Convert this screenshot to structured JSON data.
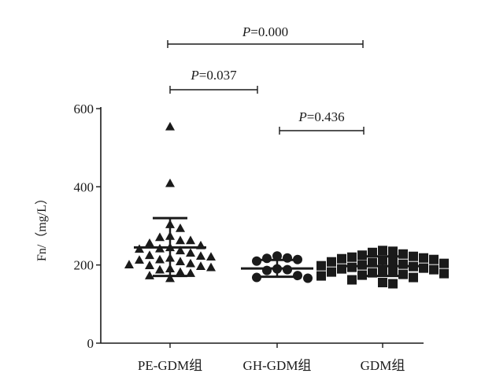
{
  "chart_data": {
    "type": "scatter",
    "ylabel": "Fn/（mg/L）",
    "ylim": [
      0,
      600
    ],
    "yticks": [
      0,
      200,
      400,
      600
    ],
    "categories": [
      "PE-GDM组",
      "GH-GDM组",
      "GDM组"
    ],
    "groups": [
      {
        "label": "PE-GDM组",
        "marker": "triangle",
        "mean": 245,
        "sd_upper": 320,
        "sd_lower": 172,
        "points": [
          553,
          408,
          303,
          293,
          273,
          270,
          262,
          262,
          255,
          249,
          244,
          241,
          240,
          236,
          230,
          224,
          222,
          220,
          217,
          213,
          212,
          208,
          203,
          200,
          198,
          196,
          193,
          190,
          187,
          181,
          178,
          172,
          165
        ]
      },
      {
        "label": "GH-GDM组",
        "marker": "circle",
        "mean": 191,
        "sd_upper": 213,
        "sd_lower": 170,
        "points": [
          223,
          218,
          217,
          214,
          210,
          190,
          188,
          186,
          173,
          168,
          166
        ]
      },
      {
        "label": "GDM组",
        "marker": "square",
        "mean": 197,
        "sd_upper": 222,
        "sd_lower": 172,
        "points": [
          237,
          235,
          232,
          228,
          225,
          222,
          220,
          218,
          216,
          214,
          212,
          210,
          208,
          206,
          204,
          202,
          200,
          198,
          196,
          194,
          192,
          190,
          188,
          186,
          184,
          182,
          180,
          178,
          176,
          174,
          172,
          168,
          162,
          155,
          152
        ]
      }
    ],
    "comparisons": [
      {
        "from": "PE-GDM组",
        "to": "GDM组",
        "p_prefix": "P",
        "p_value": "=0.000"
      },
      {
        "from": "PE-GDM组",
        "to": "GH-GDM组",
        "p_prefix": "P",
        "p_value": "=0.037"
      },
      {
        "from": "GH-GDM组",
        "to": "GDM组",
        "p_prefix": "P",
        "p_value": "=0.436"
      }
    ]
  },
  "colors": {
    "marker": "#1a1a1a",
    "axis": "#1a1a1a"
  }
}
